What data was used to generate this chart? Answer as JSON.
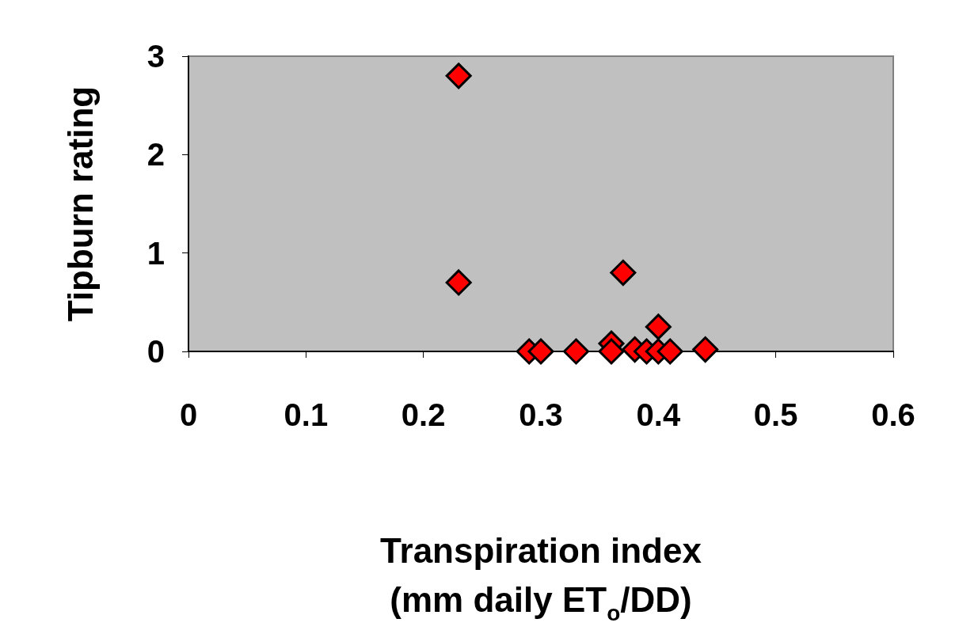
{
  "chart_data": {
    "type": "scatter",
    "xlabel": "Transpiration index\n(mm daily ET$_{o}$/DD)",
    "ylabel": "Tipburn rating",
    "x": [
      0.23,
      0.23,
      0.37,
      0.4,
      0.36,
      0.29,
      0.3,
      0.33,
      0.36,
      0.38,
      0.39,
      0.4,
      0.41,
      0.44
    ],
    "series": [
      {
        "color": "#ff0000",
        "values": [
          2.8,
          0.7,
          0.8,
          0.25,
          0.08,
          0,
          0,
          0,
          0,
          0.02,
          0,
          0,
          0,
          0.02
        ]
      }
    ],
    "xlim": [
      0,
      0.6
    ],
    "xticks": [
      0,
      0.1,
      0.2,
      0.3,
      0.4,
      0.5,
      0.6
    ],
    "ylim": [
      0,
      3
    ],
    "yticks": [
      0,
      1,
      2,
      3
    ],
    "grid": false,
    "marker": "diamond"
  }
}
